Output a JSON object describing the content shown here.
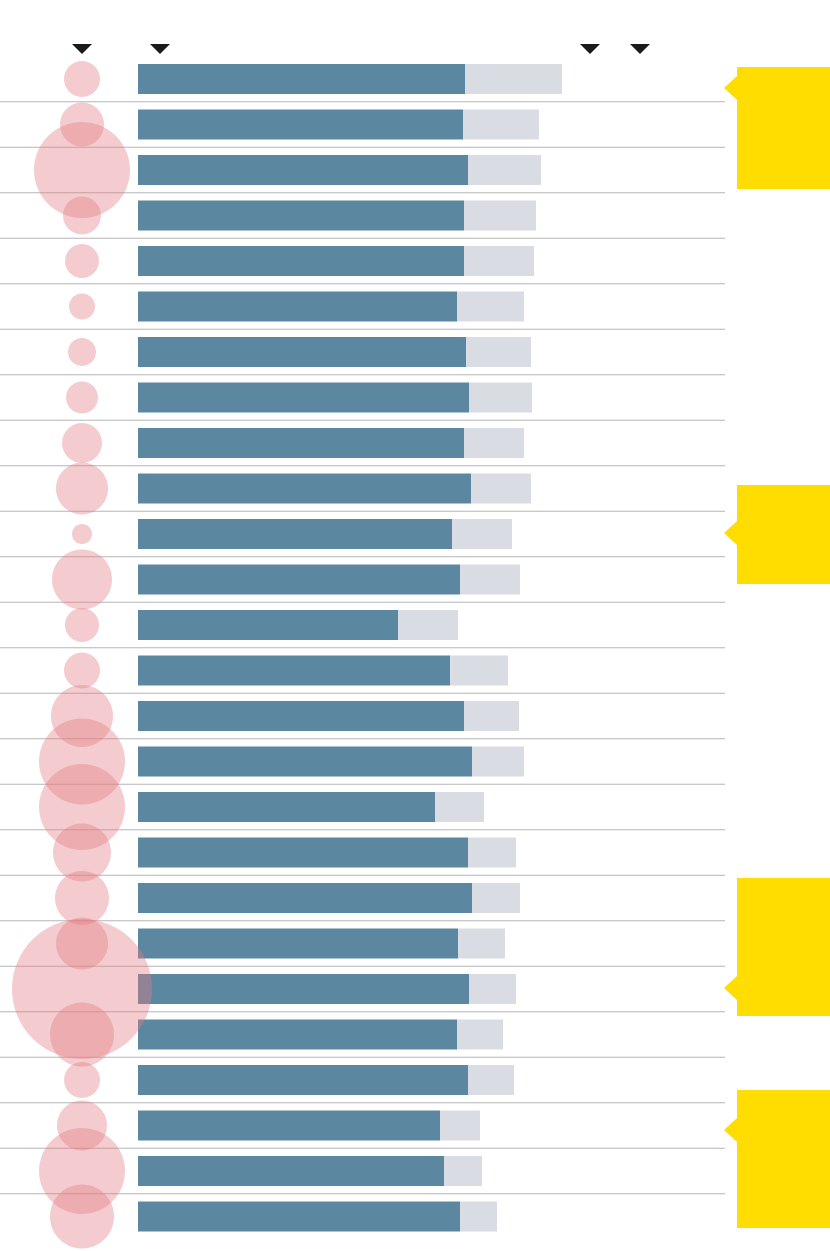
{
  "chart_data": {
    "type": "bar",
    "xlim": [
      0,
      600
    ],
    "series": [
      {
        "color": "#d9dde3",
        "values": [
          424,
          401,
          403,
          398,
          396,
          386,
          393,
          394,
          386,
          393,
          374,
          382,
          320,
          370,
          381,
          386,
          346,
          378,
          382,
          367,
          378,
          365,
          376,
          342,
          344,
          359
        ]
      },
      {
        "color": "#5b87a0",
        "values": [
          327,
          325,
          330,
          326,
          326,
          319,
          328,
          331,
          326,
          333,
          314,
          322,
          260,
          312,
          326,
          334,
          297,
          330,
          334,
          320,
          331,
          319,
          330,
          302,
          306,
          322
        ]
      }
    ],
    "sizes": {
      "color": "#e37c84",
      "values": [
        18,
        22,
        48,
        19,
        17,
        13,
        14,
        16,
        20,
        26,
        10,
        30,
        17,
        18,
        31,
        43,
        43,
        29,
        27,
        26,
        70,
        32,
        18,
        25,
        43,
        32
      ]
    }
  }
}
